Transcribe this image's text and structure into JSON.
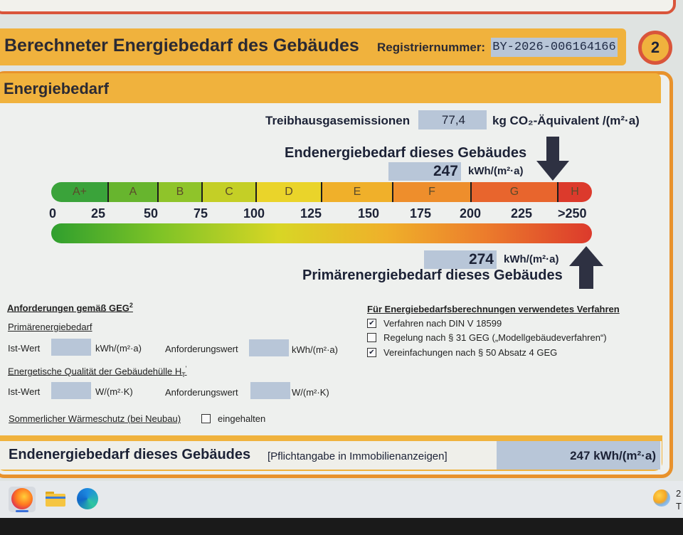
{
  "header": {
    "title": "Berechneter Energiebedarf des Gebäudes",
    "registration_label": "Registriernummer:",
    "registration_value": "BY-2026-006164166",
    "page_number": "2"
  },
  "card": {
    "title": "Energiebedarf"
  },
  "ghg": {
    "label": "Treibhausgasemissionen",
    "value": "77,4",
    "unit": "kg CO₂-Äquivalent /(m²·a)"
  },
  "final_energy": {
    "title": "Endenergiebedarf dieses Gebäudes",
    "value": "247",
    "unit": "kWh/(m²·a)"
  },
  "primary_energy": {
    "title": "Primärenergiebedarf dieses Gebäudes",
    "value": "274",
    "unit": "kWh/(m²·a)"
  },
  "scale": {
    "classes": [
      "A+",
      "A",
      "B",
      "C",
      "D",
      "E",
      "F",
      "G",
      "H"
    ],
    "ticks": [
      "0",
      "25",
      "50",
      "75",
      "100",
      "125",
      "150",
      "175",
      "200",
      "225",
      ">250"
    ]
  },
  "requirements": {
    "title": "Anforderungen gemäß GEG",
    "footnote": "2",
    "primary_label": "Primärenergiebedarf",
    "ist_label": "Ist-Wert",
    "unit_kwh": "kWh/(m²·a)",
    "req_label": "Anforderungswert",
    "envelope_label": "Energetische Qualität der Gebäudehülle H",
    "envelope_sub": "T",
    "envelope_prime": "'",
    "unit_w": "W/(m²·K)",
    "summer_label": "Sommerlicher Wärmeschutz (bei Neubau)",
    "summer_check_label": "eingehalten"
  },
  "method": {
    "title": "Für Energiebedarfsberechnungen verwendetes Verfahren",
    "options": [
      {
        "label": "Verfahren nach DIN V 18599",
        "checked": true
      },
      {
        "label": "Regelung nach § 31 GEG („Modellgebäudeverfahren“)",
        "checked": false
      },
      {
        "label": "Vereinfachungen nach § 50 Absatz 4 GEG",
        "checked": true
      }
    ]
  },
  "footer": {
    "title": "Endenergiebedarf dieses Gebäudes",
    "note": "[Pflichtangabe in Immobilienanzeigen]",
    "value": "247 kWh/(m²·a)"
  },
  "taskbar": {
    "apps": [
      "firefox-icon",
      "file-explorer-icon",
      "edge-icon"
    ],
    "clock_fragment_1": "2",
    "clock_fragment_2": "T"
  },
  "colors": {
    "accent_orange": "#f0b23d",
    "border_red": "#d9553b",
    "value_box": "#b8c6d8"
  }
}
